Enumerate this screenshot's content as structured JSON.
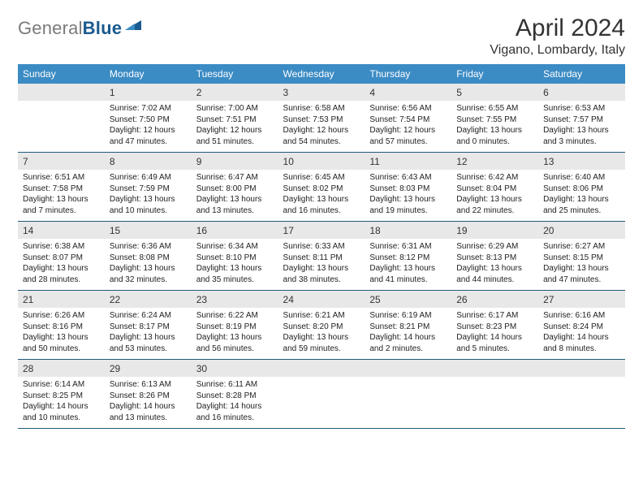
{
  "logo": {
    "general": "General",
    "blue": "Blue"
  },
  "title": "April 2024",
  "subtitle": "Vigano, Lombardy, Italy",
  "colors": {
    "header_blue": "#3b8bc4",
    "band_gray": "#e8e8e8",
    "rule_blue": "#1f5a7a",
    "logo_gray": "#7a7a7a",
    "logo_blue": "#1a5a8e",
    "background": "#ffffff",
    "text": "#222222"
  },
  "day_headers": [
    "Sunday",
    "Monday",
    "Tuesday",
    "Wednesday",
    "Thursday",
    "Friday",
    "Saturday"
  ],
  "weeks": [
    {
      "nums": [
        "",
        "1",
        "2",
        "3",
        "4",
        "5",
        "6"
      ],
      "cells": [
        [],
        [
          "Sunrise: 7:02 AM",
          "Sunset: 7:50 PM",
          "Daylight: 12 hours",
          "and 47 minutes."
        ],
        [
          "Sunrise: 7:00 AM",
          "Sunset: 7:51 PM",
          "Daylight: 12 hours",
          "and 51 minutes."
        ],
        [
          "Sunrise: 6:58 AM",
          "Sunset: 7:53 PM",
          "Daylight: 12 hours",
          "and 54 minutes."
        ],
        [
          "Sunrise: 6:56 AM",
          "Sunset: 7:54 PM",
          "Daylight: 12 hours",
          "and 57 minutes."
        ],
        [
          "Sunrise: 6:55 AM",
          "Sunset: 7:55 PM",
          "Daylight: 13 hours",
          "and 0 minutes."
        ],
        [
          "Sunrise: 6:53 AM",
          "Sunset: 7:57 PM",
          "Daylight: 13 hours",
          "and 3 minutes."
        ]
      ]
    },
    {
      "nums": [
        "7",
        "8",
        "9",
        "10",
        "11",
        "12",
        "13"
      ],
      "cells": [
        [
          "Sunrise: 6:51 AM",
          "Sunset: 7:58 PM",
          "Daylight: 13 hours",
          "and 7 minutes."
        ],
        [
          "Sunrise: 6:49 AM",
          "Sunset: 7:59 PM",
          "Daylight: 13 hours",
          "and 10 minutes."
        ],
        [
          "Sunrise: 6:47 AM",
          "Sunset: 8:00 PM",
          "Daylight: 13 hours",
          "and 13 minutes."
        ],
        [
          "Sunrise: 6:45 AM",
          "Sunset: 8:02 PM",
          "Daylight: 13 hours",
          "and 16 minutes."
        ],
        [
          "Sunrise: 6:43 AM",
          "Sunset: 8:03 PM",
          "Daylight: 13 hours",
          "and 19 minutes."
        ],
        [
          "Sunrise: 6:42 AM",
          "Sunset: 8:04 PM",
          "Daylight: 13 hours",
          "and 22 minutes."
        ],
        [
          "Sunrise: 6:40 AM",
          "Sunset: 8:06 PM",
          "Daylight: 13 hours",
          "and 25 minutes."
        ]
      ]
    },
    {
      "nums": [
        "14",
        "15",
        "16",
        "17",
        "18",
        "19",
        "20"
      ],
      "cells": [
        [
          "Sunrise: 6:38 AM",
          "Sunset: 8:07 PM",
          "Daylight: 13 hours",
          "and 28 minutes."
        ],
        [
          "Sunrise: 6:36 AM",
          "Sunset: 8:08 PM",
          "Daylight: 13 hours",
          "and 32 minutes."
        ],
        [
          "Sunrise: 6:34 AM",
          "Sunset: 8:10 PM",
          "Daylight: 13 hours",
          "and 35 minutes."
        ],
        [
          "Sunrise: 6:33 AM",
          "Sunset: 8:11 PM",
          "Daylight: 13 hours",
          "and 38 minutes."
        ],
        [
          "Sunrise: 6:31 AM",
          "Sunset: 8:12 PM",
          "Daylight: 13 hours",
          "and 41 minutes."
        ],
        [
          "Sunrise: 6:29 AM",
          "Sunset: 8:13 PM",
          "Daylight: 13 hours",
          "and 44 minutes."
        ],
        [
          "Sunrise: 6:27 AM",
          "Sunset: 8:15 PM",
          "Daylight: 13 hours",
          "and 47 minutes."
        ]
      ]
    },
    {
      "nums": [
        "21",
        "22",
        "23",
        "24",
        "25",
        "26",
        "27"
      ],
      "cells": [
        [
          "Sunrise: 6:26 AM",
          "Sunset: 8:16 PM",
          "Daylight: 13 hours",
          "and 50 minutes."
        ],
        [
          "Sunrise: 6:24 AM",
          "Sunset: 8:17 PM",
          "Daylight: 13 hours",
          "and 53 minutes."
        ],
        [
          "Sunrise: 6:22 AM",
          "Sunset: 8:19 PM",
          "Daylight: 13 hours",
          "and 56 minutes."
        ],
        [
          "Sunrise: 6:21 AM",
          "Sunset: 8:20 PM",
          "Daylight: 13 hours",
          "and 59 minutes."
        ],
        [
          "Sunrise: 6:19 AM",
          "Sunset: 8:21 PM",
          "Daylight: 14 hours",
          "and 2 minutes."
        ],
        [
          "Sunrise: 6:17 AM",
          "Sunset: 8:23 PM",
          "Daylight: 14 hours",
          "and 5 minutes."
        ],
        [
          "Sunrise: 6:16 AM",
          "Sunset: 8:24 PM",
          "Daylight: 14 hours",
          "and 8 minutes."
        ]
      ]
    },
    {
      "nums": [
        "28",
        "29",
        "30",
        "",
        "",
        "",
        ""
      ],
      "cells": [
        [
          "Sunrise: 6:14 AM",
          "Sunset: 8:25 PM",
          "Daylight: 14 hours",
          "and 10 minutes."
        ],
        [
          "Sunrise: 6:13 AM",
          "Sunset: 8:26 PM",
          "Daylight: 14 hours",
          "and 13 minutes."
        ],
        [
          "Sunrise: 6:11 AM",
          "Sunset: 8:28 PM",
          "Daylight: 14 hours",
          "and 16 minutes."
        ],
        [],
        [],
        [],
        []
      ]
    }
  ]
}
